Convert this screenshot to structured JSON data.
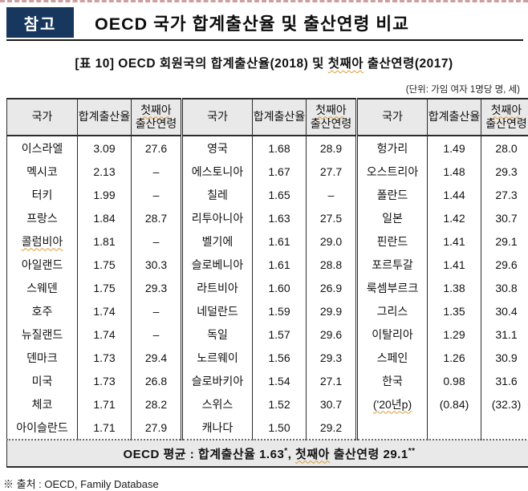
{
  "header": {
    "badge_label": "참고",
    "title": "OECD 국가 합계출산율 및 출산연령 비교"
  },
  "caption": {
    "prefix": "[표 10] OECD 회원국의 합계출산율(2018) 및 ",
    "squiggle_word": "첫째아",
    "suffix": " 출산연령(2017)"
  },
  "unit_note": "(단위: 가임 여자 1명당 명, 세)",
  "colors": {
    "badge_navy": "#17375e",
    "header_gray": "#e9e9e9",
    "squiggle_orange": "#dd9933",
    "top_dash_pink": "#cf9e9e"
  },
  "table": {
    "col_country": "국가",
    "col_tfr": "합계출산율",
    "col_age_line1": "첫째아",
    "col_age_line2": "출산연령",
    "rows": [
      [
        "이스라엘",
        "3.09",
        "27.6",
        "영국",
        "1.68",
        "28.9",
        "헝가리",
        "1.49",
        "28.0"
      ],
      [
        "멕시코",
        "2.13",
        "–",
        "에스토니아",
        "1.67",
        "27.7",
        "오스트리아",
        "1.48",
        "29.3"
      ],
      [
        "터키",
        "1.99",
        "–",
        "칠레",
        "1.65",
        "–",
        "폴란드",
        "1.44",
        "27.3"
      ],
      [
        "프랑스",
        "1.84",
        "28.7",
        "리투아니아",
        "1.63",
        "27.5",
        "일본",
        "1.42",
        "30.7"
      ],
      [
        "콜럼비아",
        "1.81",
        "–",
        "벨기에",
        "1.61",
        "29.0",
        "핀란드",
        "1.41",
        "29.1"
      ],
      [
        "아일랜드",
        "1.75",
        "30.3",
        "슬로베니아",
        "1.61",
        "28.8",
        "포르투갈",
        "1.41",
        "29.6"
      ],
      [
        "스웨덴",
        "1.75",
        "29.3",
        "라트비아",
        "1.60",
        "26.9",
        "룩셈부르크",
        "1.38",
        "30.8"
      ],
      [
        "호주",
        "1.74",
        "–",
        "네덜란드",
        "1.59",
        "29.9",
        "그리스",
        "1.35",
        "30.4"
      ],
      [
        "뉴질랜드",
        "1.74",
        "–",
        "독일",
        "1.57",
        "29.6",
        "이탈리아",
        "1.29",
        "31.1"
      ],
      [
        "덴마크",
        "1.73",
        "29.4",
        "노르웨이",
        "1.56",
        "29.3",
        "스페인",
        "1.26",
        "30.9"
      ],
      [
        "미국",
        "1.73",
        "26.8",
        "슬로바키아",
        "1.54",
        "27.1",
        "한국",
        "0.98",
        "31.6"
      ],
      [
        "체코",
        "1.71",
        "28.2",
        "스위스",
        "1.52",
        "30.7",
        "('20년p)",
        "(0.84)",
        "(32.3)"
      ],
      [
        "아이슬란드",
        "1.71",
        "27.9",
        "캐나다",
        "1.50",
        "29.2",
        "",
        "",
        ""
      ]
    ],
    "squiggle_cells": [
      [
        4,
        0
      ],
      [
        11,
        6
      ]
    ],
    "footer": {
      "part1": "OECD 평균 : 합계출산율 ",
      "tfr_value": "1.63",
      "tfr_sup": "*",
      "part2": ", ",
      "squiggle_word": "첫째아",
      "part3": " 출산연령 ",
      "age_value": "29.1",
      "age_sup": "**"
    }
  },
  "source_note": "※ 출처 : OECD, Family Database"
}
